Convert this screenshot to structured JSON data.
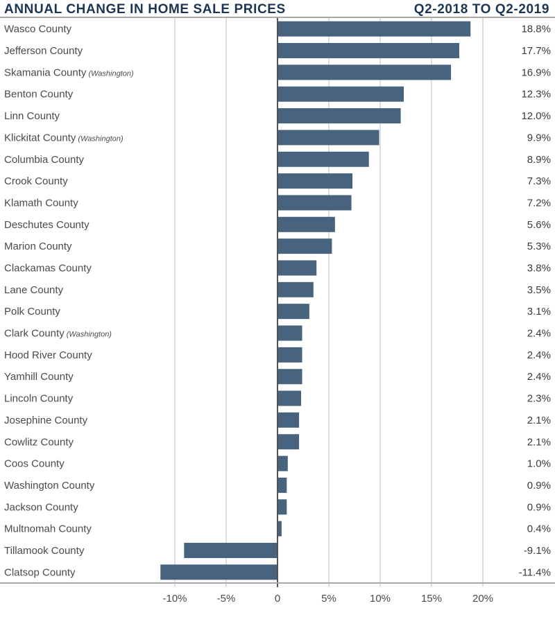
{
  "chart_data": {
    "type": "bar",
    "orientation": "horizontal",
    "title": "ANNUAL CHANGE IN HOME SALE PRICES",
    "subtitle": "Q2-2018 TO Q2-2019",
    "xlabel": "",
    "ylabel": "",
    "xlim": [
      -10,
      25
    ],
    "x_ticks": [
      -10,
      -5,
      0,
      5,
      10,
      15,
      20
    ],
    "x_tick_labels": [
      "-10%",
      "-5%",
      "0",
      "5%",
      "10%",
      "15%",
      "20%"
    ],
    "grid": true,
    "bar_color": "#48637e",
    "categories": [
      {
        "name": "Wasco County",
        "note": ""
      },
      {
        "name": "Jefferson County",
        "note": ""
      },
      {
        "name": "Skamania County",
        "note": "(Washington)"
      },
      {
        "name": "Benton County",
        "note": ""
      },
      {
        "name": "Linn County",
        "note": ""
      },
      {
        "name": "Klickitat County",
        "note": "(Washington)"
      },
      {
        "name": "Columbia County",
        "note": ""
      },
      {
        "name": "Crook County",
        "note": ""
      },
      {
        "name": "Klamath County",
        "note": ""
      },
      {
        "name": "Deschutes County",
        "note": ""
      },
      {
        "name": "Marion County",
        "note": ""
      },
      {
        "name": "Clackamas County",
        "note": ""
      },
      {
        "name": "Lane County",
        "note": ""
      },
      {
        "name": "Polk County",
        "note": ""
      },
      {
        "name": "Clark County",
        "note": "(Washington)"
      },
      {
        "name": "Hood River County",
        "note": ""
      },
      {
        "name": "Yamhill County",
        "note": ""
      },
      {
        "name": "Lincoln County",
        "note": ""
      },
      {
        "name": "Josephine County",
        "note": ""
      },
      {
        "name": "Cowlitz County",
        "note": ""
      },
      {
        "name": "Coos County",
        "note": ""
      },
      {
        "name": "Washington County",
        "note": ""
      },
      {
        "name": "Jackson County",
        "note": ""
      },
      {
        "name": "Multnomah County",
        "note": ""
      },
      {
        "name": "Tillamook County",
        "note": ""
      },
      {
        "name": "Clatsop County",
        "note": ""
      }
    ],
    "values": [
      18.8,
      17.7,
      16.9,
      12.3,
      12.0,
      9.9,
      8.9,
      7.3,
      7.2,
      5.6,
      5.3,
      3.8,
      3.5,
      3.1,
      2.4,
      2.4,
      2.4,
      2.3,
      2.1,
      2.1,
      1.0,
      0.9,
      0.9,
      0.4,
      -9.1,
      -11.4
    ],
    "value_labels": [
      "18.8%",
      "17.7%",
      "16.9%",
      "12.3%",
      "12.0%",
      "9.9%",
      "8.9%",
      "7.3%",
      "7.2%",
      "5.6%",
      "5.3%",
      "3.8%",
      "3.5%",
      "3.1%",
      "2.4%",
      "2.4%",
      "2.4%",
      "2.3%",
      "2.1%",
      "2.1%",
      "1.0%",
      "0.9%",
      "0.9%",
      "0.4%",
      "-9.1%",
      "-11.4%"
    ]
  }
}
